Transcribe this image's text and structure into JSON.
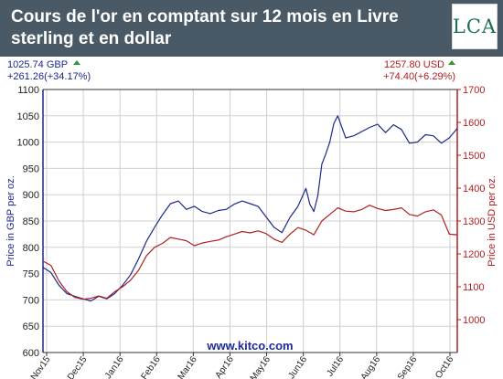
{
  "header": {
    "title": "Cours de l'or en comptant sur 12 mois en Livre sterling et en dollar",
    "logo_text": "LCA"
  },
  "readouts": {
    "gbp_price": "1025.74 GBP",
    "gbp_change": "+261.26(+34.17%)",
    "usd_price": "1257.80 USD",
    "usd_change": "+74.40(+6.29%)"
  },
  "colors": {
    "gbp": "#1c2a8a",
    "usd": "#b02020",
    "header_bg": "#4a5966",
    "up_arrow": "#2e9a2e",
    "watermark": "#1c2a9a",
    "grid": "#d0d0d0"
  },
  "chart_data": {
    "type": "line",
    "watermark": "www.kitco.com",
    "x_tick_labels": [
      "Nov15",
      "Dec15",
      "Jan16",
      "Feb16",
      "Mar16",
      "Apr16",
      "May16",
      "Jun16",
      "Jul16",
      "Aug16",
      "Sep16",
      "Oct16"
    ],
    "x_range": [
      0,
      52
    ],
    "y_left": {
      "label": "Price in GBP per oz.",
      "range": [
        600,
        1100
      ],
      "ticks": [
        600,
        650,
        700,
        750,
        800,
        850,
        900,
        950,
        1000,
        1050,
        1100
      ]
    },
    "y_right": {
      "label": "Price in USD per oz.",
      "range": [
        900,
        1700
      ],
      "ticks": [
        1000,
        1100,
        1200,
        1300,
        1400,
        1500,
        1600,
        1700
      ]
    },
    "grid": true,
    "series": [
      {
        "axis": "left",
        "x": [
          0,
          1,
          2,
          3,
          4,
          5,
          6,
          7,
          8,
          9,
          10,
          11,
          12,
          13,
          14,
          15,
          16,
          17,
          18,
          19,
          20,
          21,
          22,
          23,
          24,
          25,
          26,
          27,
          28,
          29,
          30,
          31,
          32,
          33,
          33.5,
          34,
          34.5,
          35,
          35.5,
          36,
          36.5,
          37,
          38,
          39,
          40,
          41,
          42,
          43,
          44,
          45,
          46,
          47,
          48,
          49,
          50,
          51,
          52
        ],
        "y": [
          762,
          752,
          728,
          712,
          707,
          702,
          698,
          707,
          702,
          712,
          728,
          748,
          778,
          812,
          838,
          862,
          883,
          888,
          872,
          878,
          868,
          864,
          870,
          872,
          882,
          888,
          883,
          878,
          858,
          838,
          828,
          857,
          878,
          912,
          882,
          868,
          898,
          958,
          978,
          1000,
          1035,
          1050,
          1008,
          1012,
          1020,
          1028,
          1034,
          1018,
          1033,
          1024,
          998,
          1000,
          1014,
          1012,
          998,
          1008,
          1026
        ]
      },
      {
        "axis": "right",
        "x": [
          0,
          1,
          2,
          3,
          4,
          5,
          6,
          7,
          8,
          9,
          10,
          11,
          12,
          13,
          14,
          15,
          16,
          17,
          18,
          19,
          20,
          21,
          22,
          23,
          24,
          25,
          26,
          27,
          28,
          29,
          30,
          31,
          32,
          33,
          34,
          35,
          36,
          37,
          38,
          39,
          40,
          41,
          42,
          43,
          44,
          45,
          46,
          47,
          48,
          49,
          50,
          51,
          52
        ],
        "y": [
          1178,
          1165,
          1118,
          1085,
          1068,
          1062,
          1065,
          1072,
          1065,
          1085,
          1100,
          1120,
          1150,
          1195,
          1220,
          1232,
          1250,
          1245,
          1240,
          1225,
          1233,
          1238,
          1242,
          1252,
          1260,
          1268,
          1264,
          1270,
          1262,
          1245,
          1235,
          1260,
          1280,
          1272,
          1258,
          1300,
          1320,
          1340,
          1330,
          1328,
          1335,
          1348,
          1338,
          1332,
          1335,
          1340,
          1320,
          1315,
          1328,
          1334,
          1318,
          1260,
          1258
        ]
      }
    ]
  }
}
